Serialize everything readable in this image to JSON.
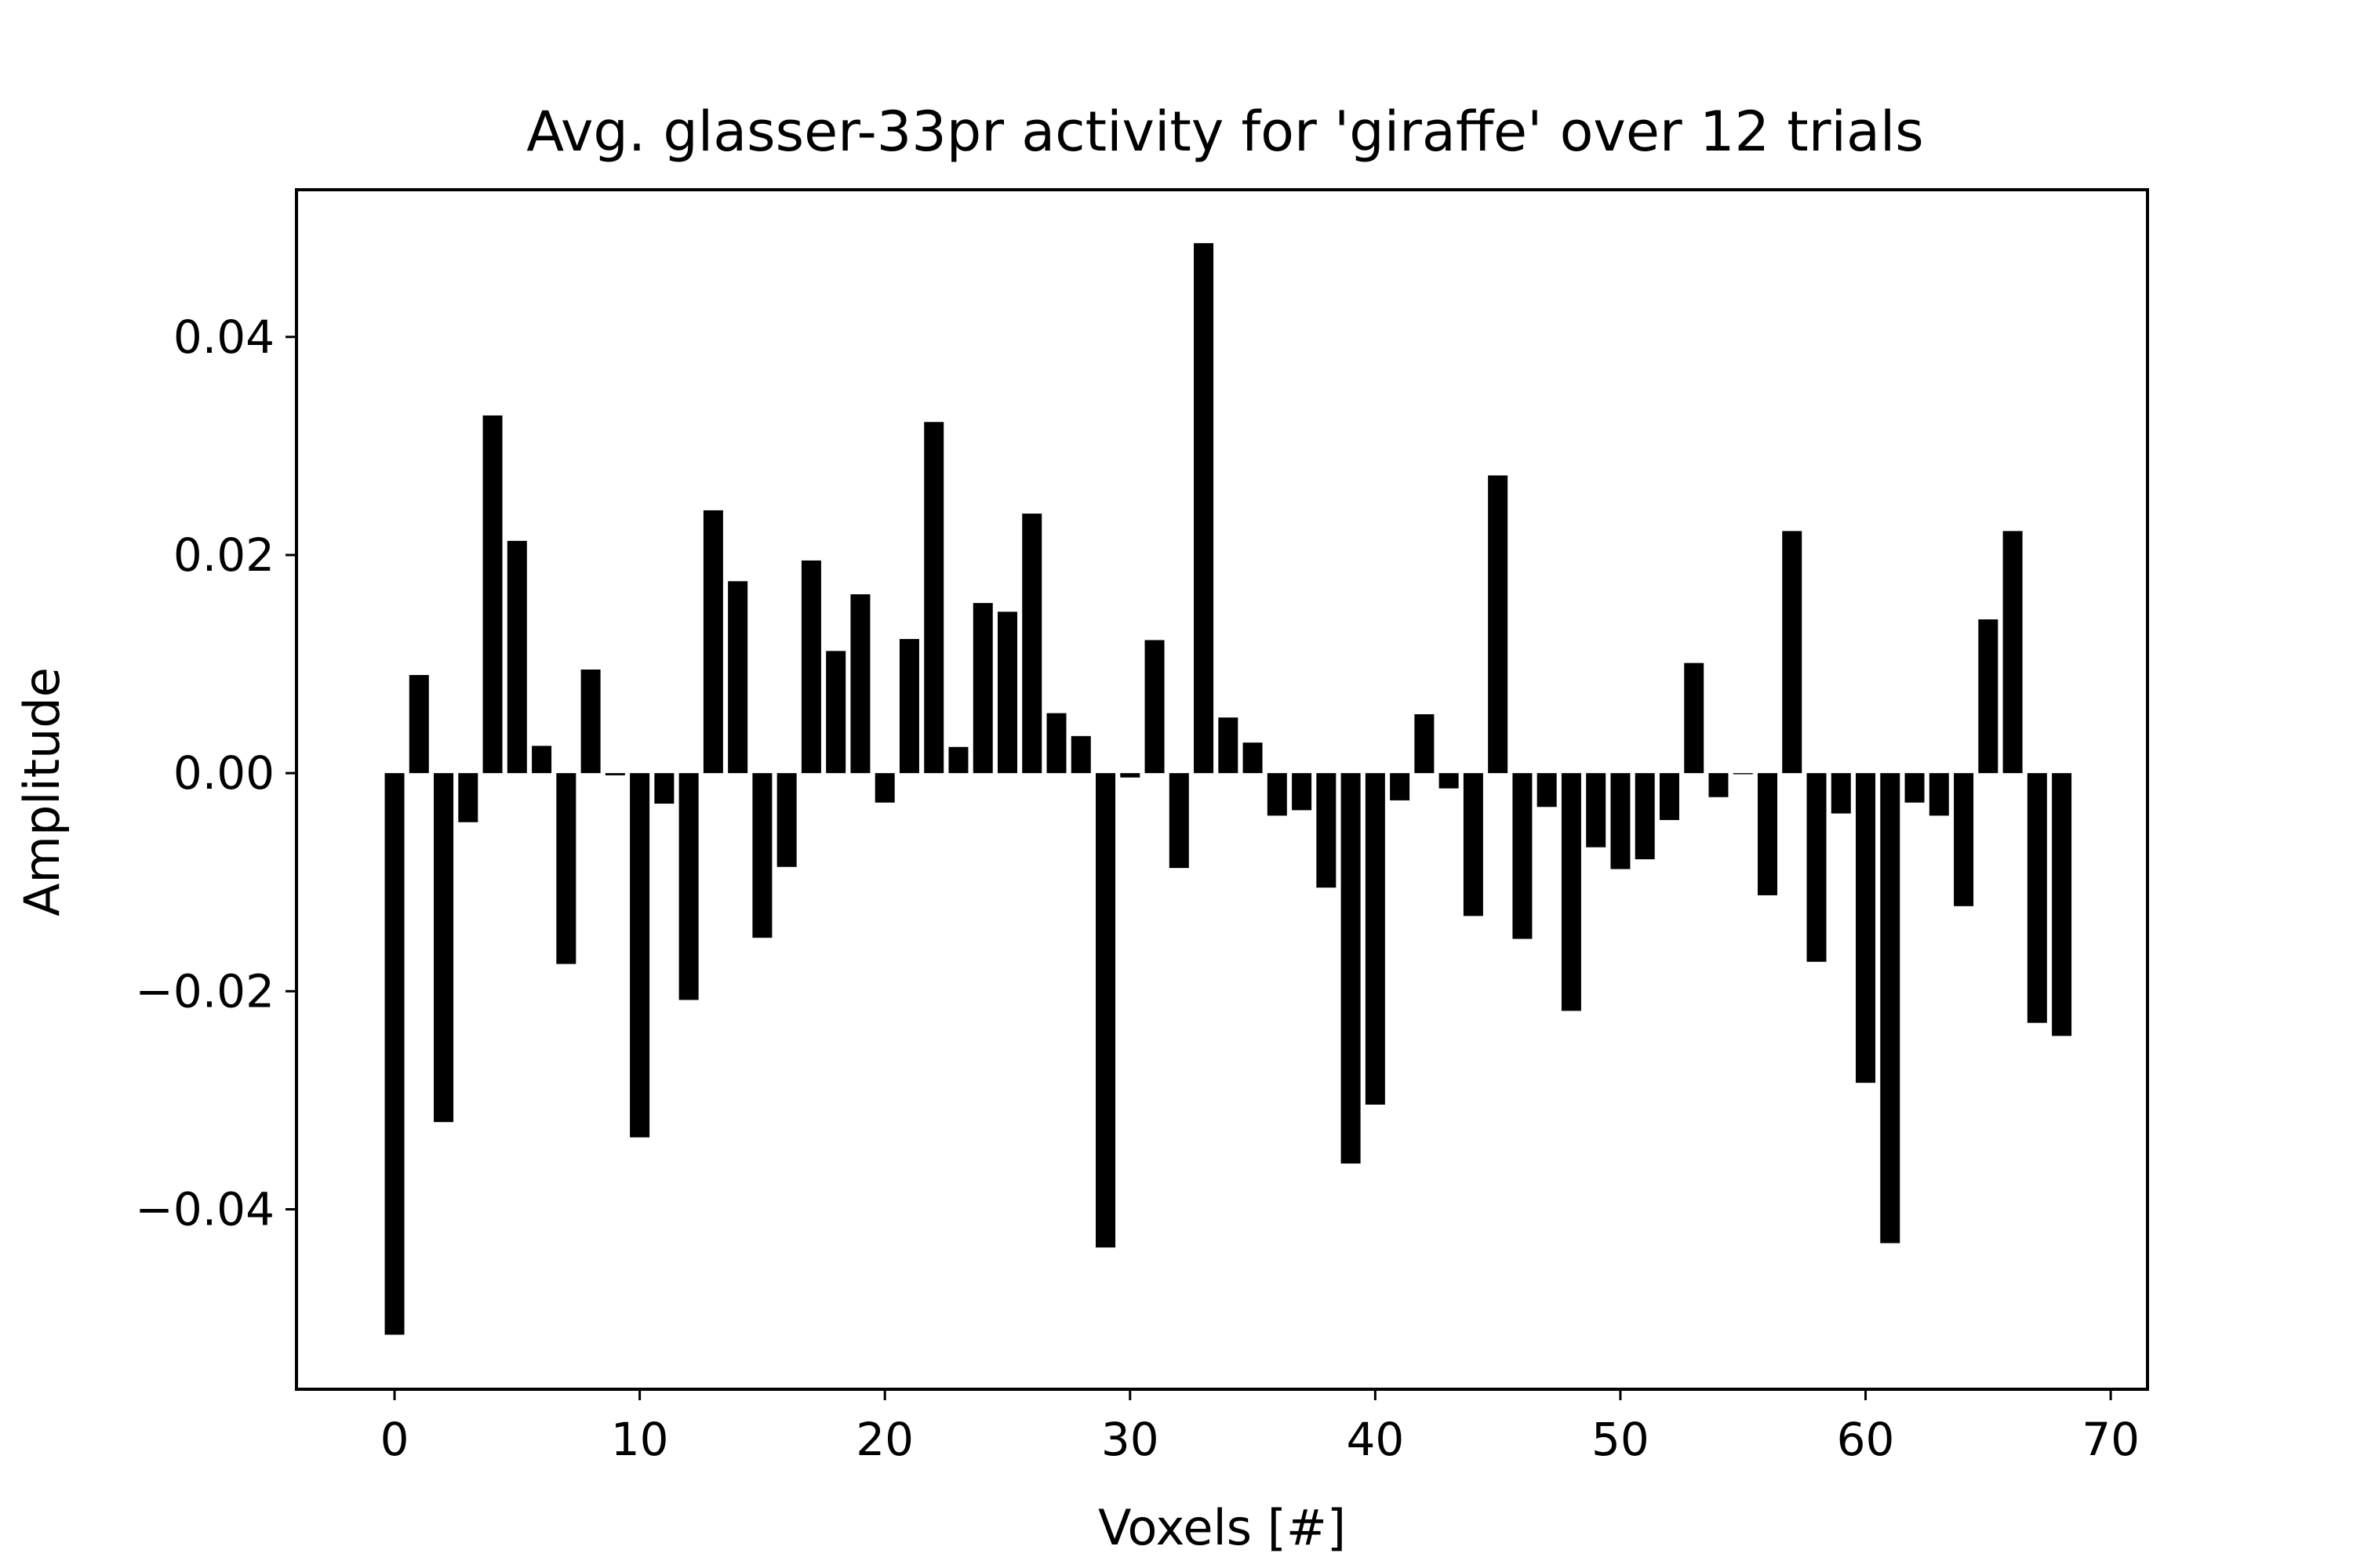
{
  "chart_data": {
    "type": "bar",
    "title": "Avg. glasser-33pr activity for 'giraffe' over 12 trials",
    "xlabel": "Voxels [#]",
    "ylabel": "Amplitude",
    "xlim": [
      -4,
      71.5
    ],
    "ylim": [
      -0.0565,
      0.0535
    ],
    "xticks": [
      0,
      10,
      20,
      30,
      40,
      50,
      60,
      70
    ],
    "xtick_labels": [
      "0",
      "10",
      "20",
      "30",
      "40",
      "50",
      "60",
      "70"
    ],
    "yticks": [
      -0.04,
      -0.02,
      0.0,
      0.02,
      0.04
    ],
    "ytick_labels": [
      "−0.04",
      "−0.02",
      "0.00",
      "0.02",
      "0.04"
    ],
    "bar_color": "#000000",
    "grid": false,
    "legend": false,
    "x": [
      0,
      1,
      2,
      3,
      4,
      5,
      6,
      7,
      8,
      9,
      10,
      11,
      12,
      13,
      14,
      15,
      16,
      17,
      18,
      19,
      20,
      21,
      22,
      23,
      24,
      25,
      26,
      27,
      28,
      29,
      30,
      31,
      32,
      33,
      34,
      35,
      36,
      37,
      38,
      39,
      40,
      41,
      42,
      43,
      44,
      45,
      46,
      47,
      48,
      49,
      50,
      51,
      52,
      53,
      54,
      55,
      56,
      57,
      58,
      59,
      60,
      61,
      62,
      63,
      64,
      65,
      66,
      67,
      68
    ],
    "values": [
      -0.0515,
      0.009,
      -0.032,
      -0.0045,
      0.0328,
      0.0213,
      0.0025,
      -0.0175,
      0.0095,
      -0.0002,
      -0.0334,
      -0.0028,
      -0.0208,
      0.0241,
      0.0176,
      -0.0151,
      -0.0086,
      0.0195,
      0.0112,
      0.0164,
      -0.0027,
      0.0123,
      0.0322,
      0.0024,
      0.0156,
      0.0148,
      0.0238,
      0.0055,
      0.0034,
      -0.0435,
      -0.0004,
      0.0122,
      -0.0087,
      0.0486,
      0.0051,
      0.0028,
      -0.0039,
      -0.0034,
      -0.0105,
      -0.0358,
      -0.0304,
      -0.0025,
      0.0054,
      -0.0014,
      -0.0131,
      0.0273,
      -0.0152,
      -0.0031,
      -0.0218,
      -0.0068,
      -0.0088,
      -0.0079,
      -0.0043,
      0.0101,
      -0.0022,
      -0.0001,
      -0.0112,
      0.0222,
      -0.0173,
      -0.0037,
      -0.0284,
      -0.0431,
      -0.0027,
      -0.0039,
      -0.0122,
      0.0141,
      0.0222,
      -0.0229,
      -0.0241
    ]
  }
}
